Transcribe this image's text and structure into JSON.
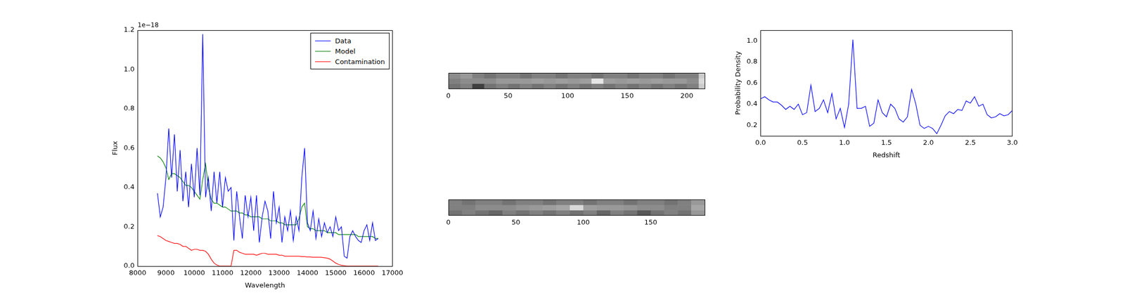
{
  "chart_data": [
    {
      "type": "line",
      "xlabel": "Wavelength",
      "ylabel": "Flux",
      "annotations": [
        "1e−18"
      ],
      "x": [
        8700,
        8800,
        8900,
        9000,
        9100,
        9200,
        9300,
        9400,
        9500,
        9600,
        9700,
        9800,
        9900,
        10000,
        10100,
        10200,
        10300,
        10400,
        10500,
        10600,
        10700,
        10800,
        10900,
        11000,
        11100,
        11200,
        11300,
        11400,
        11500,
        11600,
        11700,
        11800,
        11900,
        12000,
        12100,
        12200,
        12300,
        12400,
        12500,
        12600,
        12700,
        12800,
        12900,
        13000,
        13100,
        13200,
        13300,
        13400,
        13500,
        13600,
        13700,
        13800,
        13900,
        14000,
        14100,
        14200,
        14300,
        14400,
        14500,
        14600,
        14700,
        14800,
        14900,
        15000,
        15100,
        15200,
        15300,
        15400,
        15500,
        15600,
        15700,
        15800,
        15900,
        16000,
        16100,
        16200,
        16300,
        16400,
        16500
      ],
      "series": [
        {
          "name": "Data",
          "color": "#0000ff",
          "values": [
            0.37,
            0.25,
            0.3,
            0.45,
            0.7,
            0.45,
            0.67,
            0.38,
            0.59,
            0.33,
            0.48,
            0.3,
            0.52,
            0.35,
            0.6,
            0.36,
            1.18,
            0.35,
            0.45,
            0.28,
            0.48,
            0.32,
            0.48,
            0.3,
            0.45,
            0.38,
            0.4,
            0.13,
            0.38,
            0.25,
            0.14,
            0.36,
            0.25,
            0.35,
            0.18,
            0.36,
            0.12,
            0.25,
            0.33,
            0.28,
            0.14,
            0.38,
            0.22,
            0.3,
            0.12,
            0.25,
            0.18,
            0.28,
            0.13,
            0.25,
            0.18,
            0.45,
            0.6,
            0.22,
            0.18,
            0.28,
            0.14,
            0.24,
            0.15,
            0.22,
            0.17,
            0.2,
            0.15,
            0.25,
            0.18,
            0.2,
            0.05,
            0.04,
            0.15,
            0.18,
            0.15,
            0.13,
            0.12,
            0.18,
            0.21,
            0.13,
            0.22,
            0.13,
            0.14
          ]
        },
        {
          "name": "Model",
          "color": "#008000",
          "values": [
            0.56,
            0.55,
            0.53,
            0.5,
            0.44,
            0.47,
            0.47,
            0.46,
            0.45,
            0.43,
            0.41,
            0.41,
            0.4,
            0.38,
            0.36,
            0.34,
            0.44,
            0.52,
            0.4,
            0.34,
            0.32,
            0.32,
            0.31,
            0.3,
            0.3,
            0.29,
            0.28,
            0.28,
            0.28,
            0.27,
            0.27,
            0.26,
            0.26,
            0.25,
            0.25,
            0.25,
            0.25,
            0.24,
            0.24,
            0.24,
            0.23,
            0.23,
            0.23,
            0.22,
            0.22,
            0.21,
            0.21,
            0.21,
            0.21,
            0.21,
            0.24,
            0.3,
            0.32,
            0.2,
            0.19,
            0.19,
            0.18,
            0.18,
            0.18,
            0.18,
            0.17,
            0.17,
            0.17,
            0.17,
            0.16,
            0.16,
            0.16,
            0.16,
            0.16,
            0.16,
            0.16,
            0.15,
            0.15,
            0.15,
            0.15,
            0.15,
            0.15,
            0.14,
            0.14
          ]
        },
        {
          "name": "Contamination",
          "color": "#ff0000",
          "values": [
            0.155,
            0.15,
            0.14,
            0.13,
            0.125,
            0.12,
            0.115,
            0.115,
            0.11,
            0.1,
            0.1,
            0.09,
            0.08,
            0.085,
            0.085,
            0.08,
            0.08,
            0.075,
            0.06,
            0.035,
            0.015,
            0.005,
            0,
            0,
            0,
            0,
            0,
            0.08,
            0.08,
            0.07,
            0.065,
            0.06,
            0.06,
            0.06,
            0.06,
            0.055,
            0.06,
            0.065,
            0.065,
            0.06,
            0.06,
            0.06,
            0.06,
            0.055,
            0.055,
            0.05,
            0.05,
            0.05,
            0.05,
            0.05,
            0.05,
            0.048,
            0.048,
            0.046,
            0.046,
            0.045,
            0.045,
            0.045,
            0.044,
            0.042,
            0.04,
            0.035,
            0.025,
            0.015,
            0.008,
            0.004,
            0.002,
            0,
            0,
            0,
            0,
            0,
            0,
            0,
            0,
            0,
            0,
            0,
            0
          ]
        }
      ],
      "xlim": [
        8000,
        17000
      ],
      "xticks": [
        8000,
        9000,
        10000,
        11000,
        12000,
        13000,
        14000,
        15000,
        16000,
        17000
      ],
      "ylim": [
        0,
        1.2
      ],
      "yticks": [
        {
          "value": 0,
          "label": "0.0"
        },
        0.2,
        0.4,
        0.6,
        0.8,
        {
          "value": 1,
          "label": "1.0"
        },
        1.2
      ],
      "legend": "upper right",
      "grid": false
    },
    {
      "type": "heatmap",
      "tick_labels": "x",
      "x_bins": [
        0,
        10,
        20,
        30,
        40,
        50,
        60,
        70,
        80,
        90,
        100,
        110,
        120,
        130,
        140,
        150,
        160,
        170,
        180,
        190,
        200,
        210,
        215
      ],
      "y_bins": [
        0,
        5,
        10,
        15
      ],
      "cells": [
        [
          0.45,
          0.5,
          0.25,
          0.45,
          0.5,
          0.45,
          0.5,
          0.45,
          0.5,
          0.45,
          0.5,
          0.45,
          0.5,
          0.45,
          0.5,
          0.45,
          0.5,
          0.45,
          0.5,
          0.45,
          0.5,
          0.8
        ],
        [
          0.5,
          0.55,
          0.55,
          0.55,
          0.6,
          0.6,
          0.6,
          0.62,
          0.6,
          0.62,
          0.6,
          0.62,
          0.9,
          0.62,
          0.6,
          0.62,
          0.6,
          0.62,
          0.6,
          0.6,
          0.55,
          0.85
        ],
        [
          0.55,
          0.6,
          0.5,
          0.45,
          0.5,
          0.5,
          0.45,
          0.5,
          0.5,
          0.45,
          0.5,
          0.5,
          0.45,
          0.5,
          0.5,
          0.45,
          0.5,
          0.5,
          0.45,
          0.5,
          0.5,
          0.8
        ]
      ],
      "xlim": [
        0,
        215
      ],
      "xticks": [
        0,
        50,
        100,
        150,
        200
      ],
      "ylim": [
        0,
        15
      ]
    },
    {
      "type": "heatmap",
      "tick_labels": "x",
      "x_bins": [
        0,
        10,
        20,
        30,
        40,
        50,
        60,
        70,
        80,
        90,
        100,
        110,
        120,
        130,
        140,
        150,
        160,
        170,
        180,
        190
      ],
      "y_bins": [
        0,
        5,
        10,
        15
      ],
      "cells": [
        [
          0.45,
          0.5,
          0.45,
          0.4,
          0.5,
          0.45,
          0.5,
          0.45,
          0.5,
          0.45,
          0.5,
          0.4,
          0.5,
          0.45,
          0.35,
          0.45,
          0.5,
          0.45,
          0.6
        ],
        [
          0.5,
          0.5,
          0.55,
          0.55,
          0.55,
          0.58,
          0.6,
          0.62,
          0.65,
          0.85,
          0.62,
          0.6,
          0.6,
          0.58,
          0.55,
          0.55,
          0.5,
          0.5,
          0.65
        ],
        [
          0.5,
          0.45,
          0.5,
          0.5,
          0.45,
          0.5,
          0.5,
          0.45,
          0.5,
          0.5,
          0.45,
          0.5,
          0.5,
          0.45,
          0.5,
          0.5,
          0.45,
          0.5,
          0.6
        ]
      ],
      "xlim": [
        0,
        190
      ],
      "xticks": [
        0,
        50,
        100,
        150
      ],
      "ylim": [
        0,
        15
      ]
    },
    {
      "type": "line",
      "xlabel": "Redshift",
      "ylabel": "Probability Density",
      "x": [
        0,
        0.05,
        0.1,
        0.15,
        0.2,
        0.25,
        0.3,
        0.35,
        0.4,
        0.45,
        0.5,
        0.55,
        0.6,
        0.65,
        0.7,
        0.75,
        0.8,
        0.85,
        0.9,
        0.95,
        1,
        1.05,
        1.1,
        1.15,
        1.2,
        1.25,
        1.3,
        1.35,
        1.4,
        1.45,
        1.5,
        1.55,
        1.6,
        1.65,
        1.7,
        1.75,
        1.8,
        1.85,
        1.9,
        1.95,
        2,
        2.05,
        2.1,
        2.15,
        2.2,
        2.25,
        2.3,
        2.35,
        2.4,
        2.45,
        2.5,
        2.55,
        2.6,
        2.65,
        2.7,
        2.75,
        2.8,
        2.85,
        2.9,
        2.95,
        3
      ],
      "color": "#0000ff",
      "values": [
        0.45,
        0.47,
        0.44,
        0.42,
        0.42,
        0.39,
        0.35,
        0.38,
        0.35,
        0.4,
        0.3,
        0.32,
        0.58,
        0.33,
        0.36,
        0.44,
        0.32,
        0.5,
        0.26,
        0.36,
        0.18,
        0.4,
        1.01,
        0.36,
        0.36,
        0.38,
        0.19,
        0.22,
        0.44,
        0.32,
        0.28,
        0.4,
        0.36,
        0.26,
        0.23,
        0.28,
        0.54,
        0.4,
        0.2,
        0.17,
        0.19,
        0.17,
        0.12,
        0.2,
        0.29,
        0.33,
        0.31,
        0.35,
        0.34,
        0.43,
        0.41,
        0.47,
        0.38,
        0.4,
        0.3,
        0.27,
        0.28,
        0.31,
        0.29,
        0.3,
        0.34
      ],
      "xlim": [
        0,
        3
      ],
      "xticks": [
        {
          "value": 0,
          "label": "0.0"
        },
        0.5,
        {
          "value": 1,
          "label": "1.0"
        },
        1.5,
        {
          "value": 2,
          "label": "2.0"
        },
        2.5,
        {
          "value": 3,
          "label": "3.0"
        }
      ],
      "ylim": [
        0.1,
        1.1
      ],
      "yticks": [
        0.2,
        0.4,
        0.6,
        0.8,
        {
          "value": 1,
          "label": "1.0"
        }
      ],
      "grid": false
    }
  ]
}
